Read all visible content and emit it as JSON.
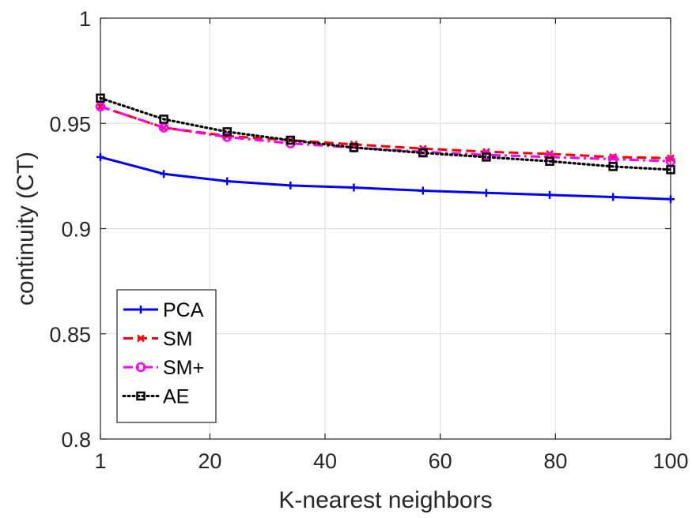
{
  "chart_data": {
    "type": "line",
    "title": "",
    "xlabel": "K-nearest neighbors",
    "ylabel": "continuity (CT)",
    "xlim": [
      1,
      100
    ],
    "ylim": [
      0.8,
      1
    ],
    "xticks": [
      1,
      20,
      40,
      60,
      80,
      100
    ],
    "yticks": [
      0.8,
      0.85,
      0.9,
      0.95,
      1
    ],
    "ytick_labels": [
      "0.8",
      "0.85",
      "0.9",
      "0.95",
      "1"
    ],
    "grid": true,
    "legend_position": "bottom-left",
    "x": [
      1,
      12,
      23,
      34,
      45,
      57,
      68,
      79,
      90,
      100
    ],
    "series": [
      {
        "name": "PCA",
        "color": "#0000ff",
        "dash": "solid",
        "marker": "plus",
        "values": [
          0.934,
          0.926,
          0.9225,
          0.9205,
          0.9195,
          0.918,
          0.917,
          0.916,
          0.915,
          0.914
        ]
      },
      {
        "name": "SM",
        "color": "#ff0000",
        "dash": "dashed",
        "marker": "x",
        "values": [
          0.958,
          0.948,
          0.944,
          0.942,
          0.94,
          0.938,
          0.9365,
          0.9355,
          0.934,
          0.9335
        ]
      },
      {
        "name": "SM+",
        "color": "#ff00ff",
        "dash": "dashdot",
        "marker": "circle",
        "values": [
          0.958,
          0.948,
          0.9435,
          0.9405,
          0.9385,
          0.9365,
          0.935,
          0.934,
          0.933,
          0.932
        ]
      },
      {
        "name": "AE",
        "color": "#000000",
        "dash": "dotted",
        "marker": "square",
        "values": [
          0.962,
          0.952,
          0.946,
          0.942,
          0.9385,
          0.936,
          0.934,
          0.932,
          0.9295,
          0.928
        ]
      }
    ]
  }
}
